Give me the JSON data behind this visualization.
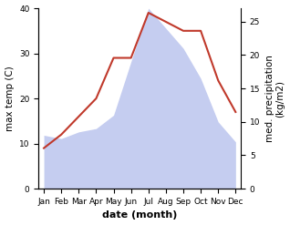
{
  "months": [
    "Jan",
    "Feb",
    "Mar",
    "Apr",
    "May",
    "Jun",
    "Jul",
    "Aug",
    "Sep",
    "Oct",
    "Nov",
    "Dec"
  ],
  "temp": [
    9,
    12,
    16,
    20,
    29,
    29,
    39,
    37,
    35,
    35,
    24,
    17
  ],
  "precip": [
    8,
    7.5,
    8.5,
    9,
    11,
    19,
    27,
    24,
    21,
    16.5,
    10,
    7
  ],
  "temp_color": "#c0392b",
  "precip_fill_color": "#c5cdf0",
  "left_ylabel": "max temp (C)",
  "right_ylabel": "med. precipitation\n(kg/m2)",
  "xlabel": "date (month)",
  "ylim_left": [
    0,
    40
  ],
  "ylim_right": [
    0,
    27
  ],
  "left_yticks": [
    0,
    10,
    20,
    30,
    40
  ],
  "right_yticks": [
    0,
    5,
    10,
    15,
    20,
    25
  ],
  "label_fontsize": 7.5,
  "tick_fontsize": 6.5,
  "xlabel_fontsize": 8,
  "linewidth": 1.5
}
